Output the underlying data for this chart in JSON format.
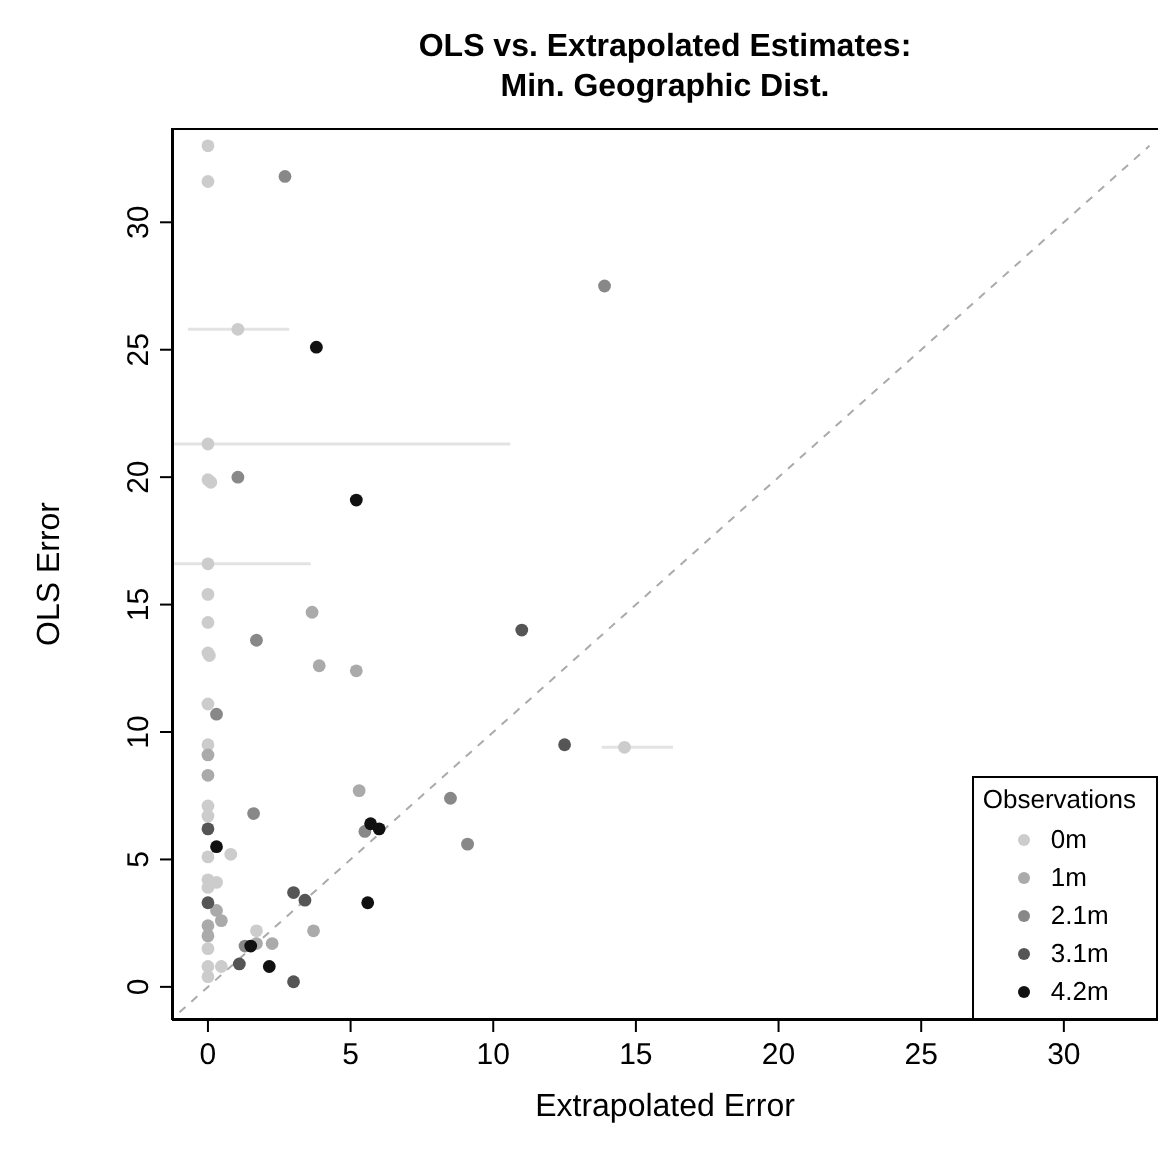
{
  "chart_data": {
    "type": "scatter",
    "title": "OLS vs. Extrapolated Estimates:\nMin. Geographic Dist.",
    "xlabel": "Extrapolated Error",
    "ylabel": "OLS Error",
    "legend_title": "Observations",
    "legend": "bottom right",
    "marker": "circle",
    "xlim": [
      -1.26,
      33.3
    ],
    "xticks": [
      0,
      5,
      10,
      15,
      20,
      25,
      30
    ],
    "ylim": [
      -1.3,
      33.7
    ],
    "yticks": [
      0,
      5,
      10,
      15,
      20,
      25,
      30
    ],
    "series": [
      {
        "type": "line",
        "line_style": "dashed",
        "marker": "none",
        "color": "#aaaaaa",
        "x": [
          -1,
          33
        ],
        "values": [
          -1,
          33
        ]
      },
      {
        "name": "0m",
        "color": "#cccccc",
        "x": [
          0,
          0,
          1.05,
          0,
          0,
          0.1,
          0,
          0,
          0,
          0,
          0.05,
          0,
          0,
          14.6,
          0,
          0,
          0.8,
          0,
          0,
          0.3,
          0,
          1.7,
          0,
          0.47,
          0,
          0
        ],
        "values": [
          33.0,
          31.6,
          25.8,
          21.3,
          19.9,
          19.8,
          16.6,
          15.4,
          14.3,
          13.1,
          13.0,
          11.1,
          9.5,
          9.4,
          7.1,
          6.7,
          5.2,
          5.1,
          4.2,
          4.1,
          3.9,
          2.2,
          1.5,
          0.8,
          0.8,
          0.4
        ],
        "xerrors": [
          null,
          null,
          [
            -0.7,
            2.85
          ],
          [
            -1.2,
            10.6
          ],
          null,
          null,
          [
            -1.2,
            3.6
          ],
          null,
          null,
          null,
          null,
          null,
          null,
          [
            13.8,
            16.3
          ],
          null,
          null,
          null,
          null,
          null,
          null,
          null,
          null,
          null,
          null,
          null,
          null
        ]
      },
      {
        "name": "1m",
        "color": "#aaaaaa",
        "x": [
          3.65,
          3.9,
          5.2,
          0,
          0,
          5.3,
          0.3,
          0.47,
          0,
          0,
          3.7,
          2.25,
          1.7
        ],
        "values": [
          14.7,
          12.6,
          12.4,
          9.1,
          8.3,
          7.7,
          3.0,
          2.6,
          2.4,
          2.0,
          2.2,
          1.7,
          1.7
        ]
      },
      {
        "name": "2.1m",
        "color": "#888888",
        "x": [
          2.7,
          13.9,
          1.05,
          1.7,
          0.3,
          8.5,
          1.6,
          5.5,
          9.1,
          1.3
        ],
        "values": [
          31.8,
          27.5,
          20.0,
          13.6,
          10.7,
          7.4,
          6.8,
          6.1,
          5.6,
          1.6
        ]
      },
      {
        "name": "3.1m",
        "color": "#555555",
        "x": [
          11.0,
          12.5,
          0,
          3.0,
          3.4,
          0,
          1.1,
          3.0
        ],
        "values": [
          14.0,
          9.5,
          6.2,
          3.7,
          3.4,
          3.3,
          0.9,
          0.2
        ]
      },
      {
        "name": "4.2m",
        "color": "#111111",
        "x": [
          3.8,
          5.2,
          5.7,
          6.0,
          0.3,
          5.6,
          1.5,
          2.15
        ],
        "values": [
          25.1,
          19.1,
          6.4,
          6.2,
          5.5,
          3.3,
          1.6,
          0.8
        ]
      }
    ]
  }
}
